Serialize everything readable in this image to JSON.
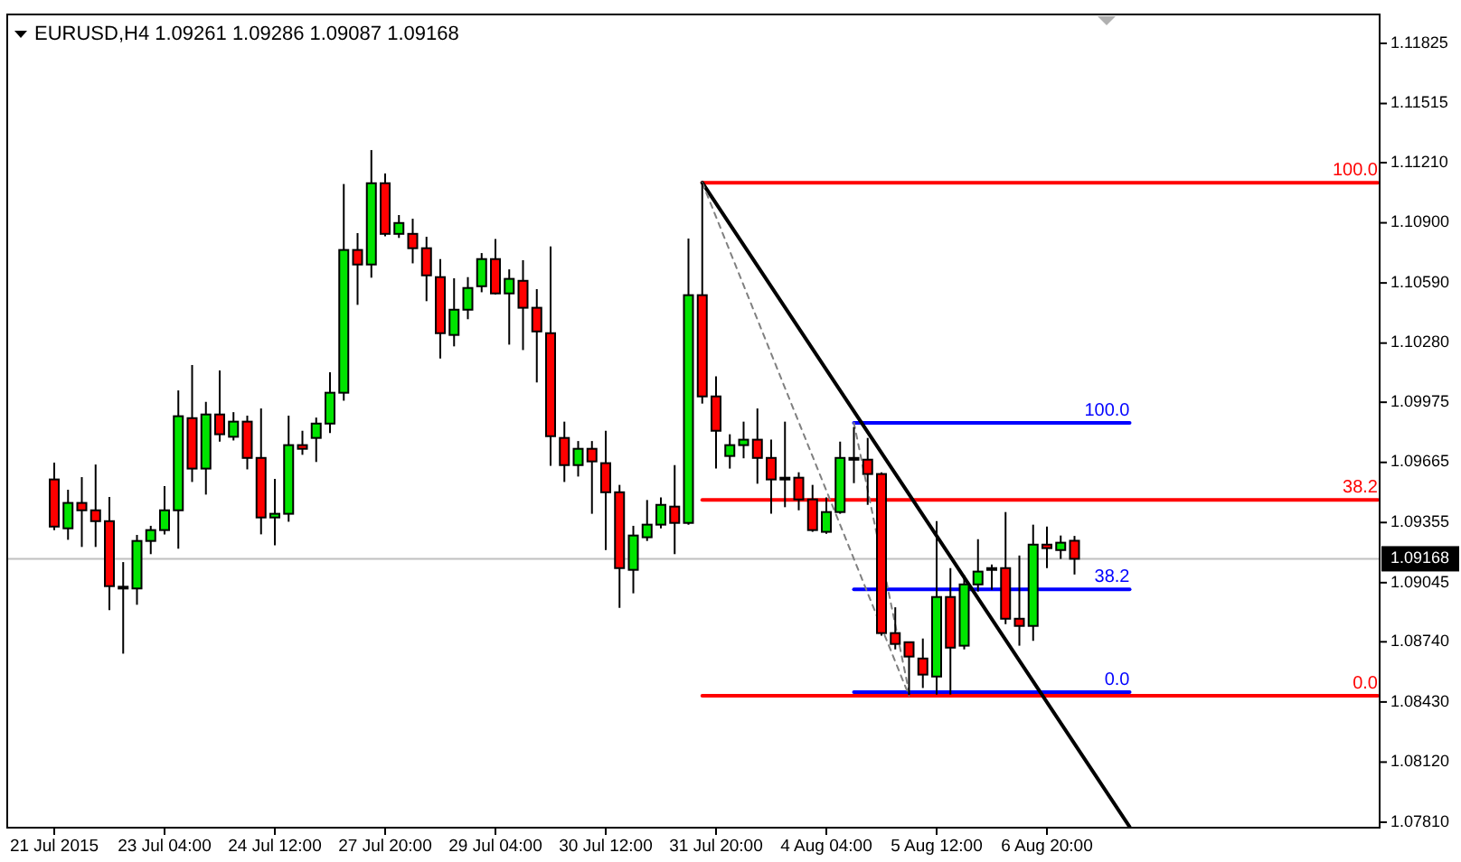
{
  "chart_data": {
    "type": "candlestick",
    "title": "EURUSD,H4  1.09261 1.09286 1.09087 1.09168",
    "categories": [
      "21 Jul 2015",
      null,
      null,
      null,
      null,
      null,
      null,
      null,
      "23 Jul 04:00",
      null,
      null,
      null,
      null,
      null,
      null,
      null,
      "24 Jul 12:00",
      null,
      null,
      null,
      null,
      null,
      null,
      null,
      "27 Jul 20:00",
      null,
      null,
      null,
      null,
      null,
      null,
      null,
      "29 Jul 04:00",
      null,
      null,
      null,
      null,
      null,
      null,
      null,
      "30 Jul 12:00",
      null,
      null,
      null,
      null,
      null,
      null,
      null,
      "31 Jul 20:00",
      null,
      null,
      null,
      null,
      null,
      null,
      null,
      "4 Aug 04:00",
      null,
      null,
      null,
      null,
      null,
      null,
      null,
      "5 Aug 12:00",
      null,
      null,
      null,
      null,
      null,
      null,
      null,
      "6 Aug 20:00",
      null,
      null,
      null,
      null,
      null,
      null,
      null,
      null,
      null,
      null,
      null,
      null,
      null,
      null,
      null,
      null,
      null,
      null,
      null,
      null,
      null,
      null,
      null,
      null
    ],
    "ohlc": [
      [
        1.09577,
        1.09664,
        1.09316,
        1.09334
      ],
      [
        1.09325,
        1.09524,
        1.09266,
        1.09456
      ],
      [
        1.09456,
        1.09589,
        1.09229,
        1.09418
      ],
      [
        1.09418,
        1.09654,
        1.09229,
        1.09362
      ],
      [
        1.09362,
        1.09487,
        1.08903,
        1.09027
      ],
      [
        1.09024,
        1.09151,
        1.08679,
        1.09018
      ],
      [
        1.09015,
        1.09291,
        1.08931,
        1.0926
      ],
      [
        1.0926,
        1.09338,
        1.09192,
        1.09316
      ],
      [
        1.09316,
        1.09543,
        1.09294,
        1.09418
      ],
      [
        1.09418,
        1.10036,
        1.0922,
        1.09903
      ],
      [
        1.09893,
        1.10167,
        1.09564,
        1.09633
      ],
      [
        1.09633,
        1.09977,
        1.09499,
        1.09912
      ],
      [
        1.09912,
        1.10139,
        1.09772,
        1.0981
      ],
      [
        1.09797,
        1.09924,
        1.09778,
        1.09875
      ],
      [
        1.09875,
        1.09906,
        1.09629,
        1.09688
      ],
      [
        1.09688,
        1.09943,
        1.09294,
        1.09381
      ],
      [
        1.09381,
        1.0958,
        1.09238,
        1.094
      ],
      [
        1.094,
        1.09906,
        1.09359,
        1.09754
      ],
      [
        1.09754,
        1.09828,
        1.09704,
        1.09735
      ],
      [
        1.09791,
        1.09896,
        1.09667,
        1.09865
      ],
      [
        1.09865,
        1.10129,
        1.09816,
        1.10024
      ],
      [
        1.10024,
        1.111,
        1.09983,
        1.1076
      ],
      [
        1.1076,
        1.10847,
        1.10477,
        1.10685
      ],
      [
        1.10685,
        1.11275,
        1.10617,
        1.11104
      ],
      [
        1.11104,
        1.11154,
        1.10831,
        1.10843
      ],
      [
        1.10843,
        1.1094,
        1.10822,
        1.10899
      ],
      [
        1.10843,
        1.10921,
        1.10691,
        1.10769
      ],
      [
        1.10769,
        1.10828,
        1.10496,
        1.10629
      ],
      [
        1.1062,
        1.10713,
        1.10201,
        1.10331
      ],
      [
        1.10322,
        1.10614,
        1.10263,
        1.10452
      ],
      [
        1.10452,
        1.1062,
        1.10403,
        1.10564
      ],
      [
        1.10573,
        1.10744,
        1.10542,
        1.10713
      ],
      [
        1.10713,
        1.10816,
        1.1053,
        1.10536
      ],
      [
        1.10536,
        1.1066,
        1.10272,
        1.10611
      ],
      [
        1.10601,
        1.10707,
        1.10244,
        1.10462
      ],
      [
        1.10462,
        1.10558,
        1.10077,
        1.1034
      ],
      [
        1.10331,
        1.10778,
        1.09648,
        1.098
      ],
      [
        1.09791,
        1.09875,
        1.09564,
        1.09651
      ],
      [
        1.09651,
        1.09775,
        1.09592,
        1.09735
      ],
      [
        1.09735,
        1.09775,
        1.094,
        1.0967
      ],
      [
        1.09661,
        1.09828,
        1.09213,
        1.09511
      ],
      [
        1.09511,
        1.09549,
        1.08915,
        1.0912
      ],
      [
        1.09111,
        1.09338,
        1.0899,
        1.09288
      ],
      [
        1.09279,
        1.09471,
        1.0926,
        1.09344
      ],
      [
        1.09344,
        1.09484,
        1.09325,
        1.09446
      ],
      [
        1.09437,
        1.09651,
        1.09192,
        1.09353
      ],
      [
        1.09353,
        1.10819,
        1.09344,
        1.10527
      ],
      [
        1.10527,
        1.11107,
        1.09968,
        1.10005
      ],
      [
        1.10005,
        1.10108,
        1.09633,
        1.09828
      ],
      [
        1.09698,
        1.0981,
        1.09633,
        1.09754
      ],
      [
        1.09754,
        1.09875,
        1.09686,
        1.09782
      ],
      [
        1.09782,
        1.09943,
        1.09555,
        1.09688
      ],
      [
        1.09688,
        1.09782,
        1.094,
        1.09577
      ],
      [
        1.09586,
        1.09875,
        1.09434,
        1.09577
      ],
      [
        1.09586,
        1.09614,
        1.09418,
        1.09474
      ],
      [
        1.09474,
        1.09549,
        1.09307,
        1.09316
      ],
      [
        1.09307,
        1.09484,
        1.09297,
        1.09409
      ],
      [
        1.09409,
        1.09772,
        1.094,
        1.09688
      ],
      [
        1.09688,
        1.09847,
        1.09558,
        1.09679
      ],
      [
        1.09679,
        1.09791,
        1.09446,
        1.09605
      ],
      [
        1.09605,
        1.09614,
        1.08772,
        1.08785
      ],
      [
        1.08785,
        1.08918,
        1.08701,
        1.08729
      ],
      [
        1.08738,
        1.08738,
        1.08465,
        1.08664
      ],
      [
        1.08654,
        1.08757,
        1.08502,
        1.08571
      ],
      [
        1.08561,
        1.09362,
        1.08468,
        1.08971
      ],
      [
        1.08971,
        1.0912,
        1.08468,
        1.0871
      ],
      [
        1.0872,
        1.09083,
        1.08701,
        1.09036
      ],
      [
        1.09036,
        1.09269,
        1.08999,
        1.09102
      ],
      [
        1.0912,
        1.09139,
        1.09008,
        1.09111
      ],
      [
        1.0912,
        1.09409,
        1.08831,
        1.08859
      ],
      [
        1.08859,
        1.09185,
        1.0872,
        1.08822
      ],
      [
        1.08822,
        1.09344,
        1.08745,
        1.09241
      ],
      [
        1.09241,
        1.09334,
        1.0912,
        1.09223
      ],
      [
        1.09213,
        1.09288,
        1.09167,
        1.09251
      ],
      [
        1.09261,
        1.09286,
        1.09087,
        1.09168
      ],
      null,
      null,
      null,
      null,
      null,
      null,
      null,
      null,
      null,
      null,
      null,
      null,
      null,
      null,
      null,
      null,
      null,
      null,
      null,
      null,
      null,
      null
    ],
    "colors": [
      "#ff0000",
      "#00e400",
      "#ff0000",
      "#ff0000",
      "#ff0000",
      "#000000",
      "#00e400",
      "#00e400",
      "#00e400",
      "#00e400",
      "#ff0000",
      "#00e400",
      "#ff0000",
      "#00e400",
      "#ff0000",
      "#ff0000",
      "#00e400",
      "#00e400",
      "#ff0000",
      "#00e400",
      "#00e400",
      "#00e400",
      "#ff0000",
      "#00e400",
      "#ff0000",
      "#00e400",
      "#ff0000",
      "#ff0000",
      "#ff0000",
      "#00e400",
      "#00e400",
      "#00e400",
      "#ff0000",
      "#00e400",
      "#ff0000",
      "#ff0000",
      "#ff0000",
      "#ff0000",
      "#00e400",
      "#ff0000",
      "#ff0000",
      "#ff0000",
      "#00e400",
      "#00e400",
      "#00e400",
      "#ff0000",
      "#00e400",
      "#ff0000",
      "#ff0000",
      "#00e400",
      "#00e400",
      "#ff0000",
      "#ff0000",
      "#000000",
      "#ff0000",
      "#ff0000",
      "#00e400",
      "#00e400",
      "#000000",
      "#ff0000",
      "#ff0000",
      "#ff0000",
      "#ff0000",
      "#ff0000",
      "#00e400",
      "#ff0000",
      "#00e400",
      "#00e400",
      "#000000",
      "#ff0000",
      "#ff0000",
      "#00e400",
      "#ff0000",
      "#00e400",
      "#ff0000",
      null,
      null,
      null,
      null,
      null,
      null,
      null,
      null,
      null,
      null,
      null,
      null,
      null,
      null,
      null,
      null,
      null,
      null,
      null,
      null,
      null,
      null
    ],
    "series": [
      {
        "type": "line",
        "name": "100.0",
        "color": "#ff0000",
        "values": [
          null,
          null,
          null,
          null,
          null,
          null,
          null,
          null,
          null,
          null,
          null,
          null,
          null,
          null,
          null,
          null,
          null,
          null,
          null,
          null,
          null,
          null,
          null,
          null,
          null,
          null,
          null,
          null,
          null,
          null,
          null,
          null,
          null,
          null,
          null,
          null,
          null,
          null,
          null,
          null,
          null,
          null,
          null,
          null,
          null,
          null,
          null,
          1.11107,
          null,
          null,
          null,
          null,
          null,
          null,
          null,
          null,
          null,
          null,
          null,
          null,
          null,
          null,
          null,
          null,
          null,
          null,
          null,
          null,
          null,
          null,
          null,
          null,
          null,
          null,
          null,
          null,
          null,
          null,
          null,
          null,
          null,
          null,
          null,
          null,
          null,
          null,
          null,
          null,
          null,
          null,
          null,
          null,
          null,
          null,
          null,
          null,
          1.11107
        ]
      },
      {
        "type": "line",
        "name": "38.2",
        "color": "#ff0000",
        "values": [
          null,
          null,
          null,
          null,
          null,
          null,
          null,
          null,
          null,
          null,
          null,
          null,
          null,
          null,
          null,
          null,
          null,
          null,
          null,
          null,
          null,
          null,
          null,
          null,
          null,
          null,
          null,
          null,
          null,
          null,
          null,
          null,
          null,
          null,
          null,
          null,
          null,
          null,
          null,
          null,
          null,
          null,
          null,
          null,
          null,
          null,
          null,
          1.09472,
          null,
          null,
          null,
          null,
          null,
          null,
          null,
          null,
          null,
          null,
          null,
          null,
          null,
          null,
          null,
          null,
          null,
          null,
          null,
          null,
          null,
          null,
          null,
          null,
          null,
          null,
          null,
          null,
          null,
          null,
          null,
          null,
          null,
          null,
          null,
          null,
          null,
          null,
          null,
          null,
          null,
          null,
          null,
          null,
          null,
          null,
          null,
          null,
          1.09472
        ]
      },
      {
        "type": "line",
        "name": "0.0",
        "color": "#ff0000",
        "values": [
          null,
          null,
          null,
          null,
          null,
          null,
          null,
          null,
          null,
          null,
          null,
          null,
          null,
          null,
          null,
          null,
          null,
          null,
          null,
          null,
          null,
          null,
          null,
          null,
          null,
          null,
          null,
          null,
          null,
          null,
          null,
          null,
          null,
          null,
          null,
          null,
          null,
          null,
          null,
          null,
          null,
          null,
          null,
          null,
          null,
          null,
          null,
          1.08462,
          null,
          null,
          null,
          null,
          null,
          null,
          null,
          null,
          null,
          null,
          null,
          null,
          null,
          null,
          null,
          null,
          null,
          null,
          null,
          null,
          null,
          null,
          null,
          null,
          null,
          null,
          null,
          null,
          null,
          null,
          null,
          null,
          null,
          null,
          null,
          null,
          null,
          null,
          null,
          null,
          null,
          null,
          null,
          null,
          null,
          null,
          null,
          null,
          1.08462
        ]
      },
      {
        "type": "line",
        "name": "100.0",
        "color": "#0000ff",
        "values": [
          null,
          null,
          null,
          null,
          null,
          null,
          null,
          null,
          null,
          null,
          null,
          null,
          null,
          null,
          null,
          null,
          null,
          null,
          null,
          null,
          null,
          null,
          null,
          null,
          null,
          null,
          null,
          null,
          null,
          null,
          null,
          null,
          null,
          null,
          null,
          null,
          null,
          null,
          null,
          null,
          null,
          null,
          null,
          null,
          null,
          null,
          null,
          null,
          null,
          null,
          null,
          null,
          null,
          null,
          null,
          null,
          null,
          null,
          1.09869,
          null,
          null,
          null,
          null,
          null,
          null,
          null,
          null,
          null,
          null,
          null,
          null,
          null,
          null,
          null,
          null,
          null,
          null,
          null,
          1.09869,
          null,
          null,
          null,
          null,
          null,
          null,
          null,
          null,
          null,
          null,
          null,
          null,
          null,
          null,
          null,
          null,
          null,
          null
        ]
      },
      {
        "type": "line",
        "name": "38.2",
        "color": "#0000ff",
        "values": [
          null,
          null,
          null,
          null,
          null,
          null,
          null,
          null,
          null,
          null,
          null,
          null,
          null,
          null,
          null,
          null,
          null,
          null,
          null,
          null,
          null,
          null,
          null,
          null,
          null,
          null,
          null,
          null,
          null,
          null,
          null,
          null,
          null,
          null,
          null,
          null,
          null,
          null,
          null,
          null,
          null,
          null,
          null,
          null,
          null,
          null,
          null,
          null,
          null,
          null,
          null,
          null,
          null,
          null,
          null,
          null,
          null,
          null,
          1.09011,
          null,
          null,
          null,
          null,
          null,
          null,
          null,
          null,
          null,
          null,
          null,
          null,
          null,
          null,
          null,
          null,
          null,
          null,
          null,
          1.09011,
          null,
          null,
          null,
          null,
          null,
          null,
          null,
          null,
          null,
          null,
          null,
          null,
          null,
          null,
          null,
          null,
          null,
          null
        ]
      },
      {
        "type": "line",
        "name": "0.0",
        "color": "#0000ff",
        "values": [
          null,
          null,
          null,
          null,
          null,
          null,
          null,
          null,
          null,
          null,
          null,
          null,
          null,
          null,
          null,
          null,
          null,
          null,
          null,
          null,
          null,
          null,
          null,
          null,
          null,
          null,
          null,
          null,
          null,
          null,
          null,
          null,
          null,
          null,
          null,
          null,
          null,
          null,
          null,
          null,
          null,
          null,
          null,
          null,
          null,
          null,
          null,
          null,
          null,
          null,
          null,
          null,
          null,
          null,
          null,
          null,
          null,
          null,
          1.08481,
          null,
          null,
          null,
          null,
          null,
          null,
          null,
          null,
          null,
          null,
          null,
          null,
          null,
          null,
          null,
          null,
          null,
          null,
          null,
          1.08481,
          null,
          null,
          null,
          null,
          null,
          null,
          null,
          null,
          null,
          null,
          null,
          null,
          null,
          null,
          null,
          null,
          null,
          null
        ]
      },
      {
        "type": "line",
        "color": "#000000",
        "values": [
          null,
          null,
          null,
          null,
          null,
          null,
          null,
          null,
          null,
          null,
          null,
          null,
          null,
          null,
          null,
          null,
          null,
          null,
          null,
          null,
          null,
          null,
          null,
          null,
          null,
          null,
          null,
          null,
          null,
          null,
          null,
          null,
          null,
          null,
          null,
          null,
          null,
          null,
          null,
          null,
          null,
          null,
          null,
          null,
          null,
          null,
          null,
          1.11107,
          null,
          null,
          null,
          null,
          null,
          null,
          null,
          null,
          null,
          null,
          null,
          null,
          null,
          null,
          null,
          null,
          null,
          null,
          null,
          null,
          null,
          null,
          null,
          null,
          null,
          null,
          null,
          null,
          null,
          null,
          1.07786,
          null,
          null,
          null,
          null,
          null,
          null,
          null,
          null,
          null,
          null,
          null,
          null,
          null,
          null,
          null,
          null,
          null,
          null
        ]
      },
      {
        "type": "line",
        "color": "#808080",
        "line_style": "dashed",
        "values": [
          null,
          null,
          null,
          null,
          null,
          null,
          null,
          null,
          null,
          null,
          null,
          null,
          null,
          null,
          null,
          null,
          null,
          null,
          null,
          null,
          null,
          null,
          null,
          null,
          null,
          null,
          null,
          null,
          null,
          null,
          null,
          null,
          null,
          null,
          null,
          null,
          null,
          null,
          null,
          null,
          null,
          null,
          null,
          null,
          null,
          null,
          null,
          1.11107,
          null,
          null,
          null,
          null,
          null,
          null,
          null,
          null,
          null,
          null,
          null,
          null,
          null,
          null,
          1.08462,
          null,
          null,
          null,
          null,
          null,
          null,
          null,
          null,
          null,
          null,
          null,
          null,
          null,
          null,
          null,
          null,
          null,
          null,
          null,
          null,
          null,
          null,
          null,
          null,
          null,
          null,
          null,
          null,
          null,
          null,
          null,
          null,
          null,
          null
        ]
      },
      {
        "type": "line",
        "color": "#808080",
        "line_style": "dashed",
        "values": [
          null,
          null,
          null,
          null,
          null,
          null,
          null,
          null,
          null,
          null,
          null,
          null,
          null,
          null,
          null,
          null,
          null,
          null,
          null,
          null,
          null,
          null,
          null,
          null,
          null,
          null,
          null,
          null,
          null,
          null,
          null,
          null,
          null,
          null,
          null,
          null,
          null,
          null,
          null,
          null,
          null,
          null,
          null,
          null,
          null,
          null,
          null,
          null,
          null,
          null,
          null,
          null,
          null,
          null,
          null,
          null,
          null,
          null,
          1.09869,
          null,
          null,
          null,
          1.08481,
          null,
          null,
          null,
          null,
          null,
          null,
          null,
          null,
          null,
          null,
          null,
          null,
          null,
          null,
          null,
          null,
          null,
          null,
          null,
          null,
          null,
          null,
          null,
          null,
          null,
          null,
          null,
          null,
          null,
          null,
          null,
          null,
          null,
          null
        ]
      }
    ],
    "ylim": [
      1.07782,
      1.11974
    ],
    "yticks": [
      {
        "value": 1.11825,
        "label": "1.11825"
      },
      {
        "value": 1.11515,
        "label": "1.11515"
      },
      {
        "value": 1.1121,
        "label": "1.11210"
      },
      {
        "value": 1.109,
        "label": "1.10900"
      },
      {
        "value": 1.1059,
        "label": "1.10590"
      },
      {
        "value": 1.1028,
        "label": "1.10280"
      },
      {
        "value": 1.09975,
        "label": "1.09975"
      },
      {
        "value": 1.09665,
        "label": "1.09665"
      },
      {
        "value": 1.09355,
        "label": "1.09355"
      },
      {
        "value": 1.09045,
        "label": "1.09045"
      },
      {
        "value": 1.0874,
        "label": "1.08740"
      },
      {
        "value": 1.0843,
        "label": "1.08430"
      },
      {
        "value": 1.0812,
        "label": "1.08120"
      },
      {
        "value": 1.0781,
        "label": "1.07810"
      }
    ],
    "ref_lines": [
      {
        "axis": "y",
        "value": 1.09168,
        "label": "1.09168",
        "color": "#c0c0c0"
      }
    ]
  }
}
